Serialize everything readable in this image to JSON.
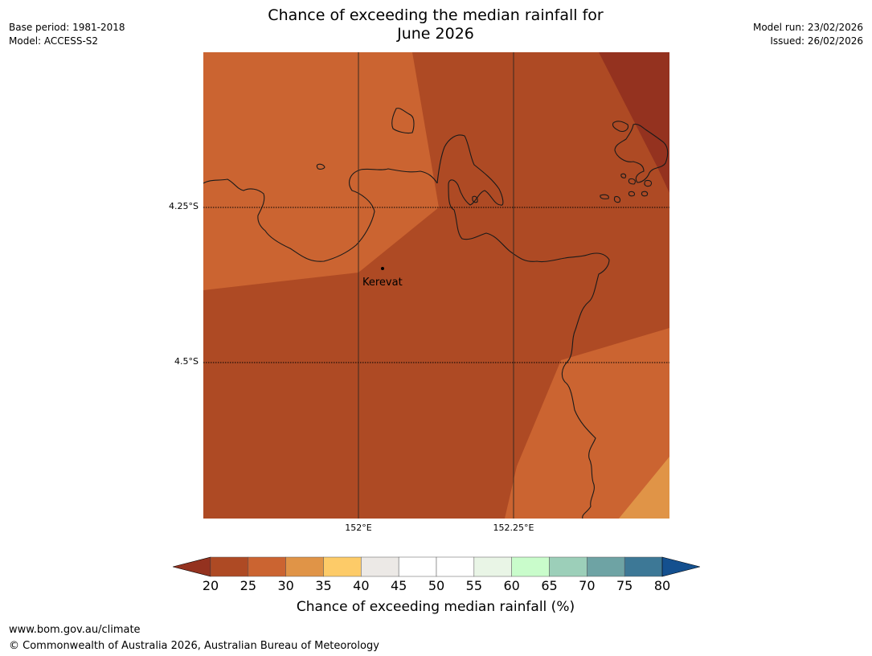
{
  "title_line1": "Chance of exceeding the median rainfall for",
  "title_line2": "June 2026",
  "meta": {
    "base_period": "Base period: 1981-2018",
    "model": "Model: ACCESS-S2",
    "model_run": "Model run: 23/02/2026",
    "issued": "Issued: 26/02/2026"
  },
  "map": {
    "place_name": "Kerevat",
    "lat_labels": [
      "4.25°S",
      "4.5°S"
    ],
    "lon_labels": [
      "152°E",
      "152.25°E"
    ]
  },
  "colorbar": {
    "label": "Chance of exceeding median rainfall (%)",
    "ticks": [
      "20",
      "25",
      "30",
      "35",
      "40",
      "45",
      "50",
      "55",
      "60",
      "65",
      "70",
      "75",
      "80"
    ],
    "colors": [
      "#ae4a24",
      "#cb6431",
      "#e09447",
      "#fdcb68",
      "#ece9e6",
      "#ffffff",
      "#ffffff",
      "#e9f5e6",
      "#c9fccb",
      "#9ccfb9",
      "#6ea3a4",
      "#3d7896"
    ],
    "under_color": "#94321f",
    "over_color": "#14508f"
  },
  "footer": {
    "url": "www.bom.gov.au/climate",
    "copyright": "© Commonwealth of Australia 2026, Australian Bureau of Meteorology"
  }
}
